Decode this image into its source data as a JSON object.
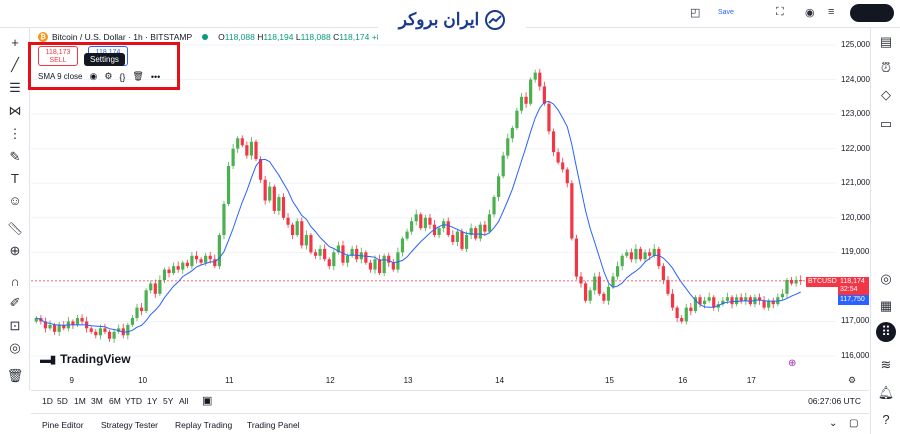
{
  "brand": {
    "name": "ایران بروکر"
  },
  "top_bar": {
    "faint_label": "Save"
  },
  "symbol": {
    "title": "Bitcoin / U.S. Dollar · 1h · BITSTAMP",
    "open_label": "O",
    "open": "118,088",
    "high_label": "H",
    "high": "118,194",
    "low_label": "L",
    "low": "118,088",
    "close_label": "C",
    "close": "118,174",
    "change": "+8"
  },
  "trade": {
    "sell_price": "118,173",
    "sell_label": "SELL",
    "buy_price": "118,174"
  },
  "indicator": {
    "label": "SMA 9 close",
    "tooltip": "Settings"
  },
  "price_axis": {
    "ticks": [
      "125,000",
      "124,000",
      "123,000",
      "122,000",
      "121,000",
      "120,000",
      "119,000",
      "118,000",
      "117,000",
      "116,000"
    ],
    "symbol_tag": "BTCUSD",
    "last_price": "118,174",
    "countdown": "32:54",
    "sma_price": "117,750"
  },
  "time_axis": {
    "ticks": [
      "9",
      "10",
      "11",
      "12",
      "13",
      "14",
      "15",
      "16",
      "17"
    ]
  },
  "logo": {
    "text": "TradingView"
  },
  "ranges": [
    "1D",
    "5D",
    "1M",
    "3M",
    "6M",
    "YTD",
    "1Y",
    "5Y",
    "All"
  ],
  "clock": "06:27:06 UTC",
  "bottom_tabs": [
    "Pine Editor",
    "Strategy Tester",
    "Replay Trading",
    "Trading Panel"
  ],
  "colors": {
    "up": "#4caf50",
    "down": "#f23645",
    "sma": "#2962ff",
    "frame": "#e3101a"
  },
  "chart_data": {
    "type": "candlestick",
    "interval": "1h",
    "ylim": [
      115700,
      125300
    ],
    "indicator": "SMA 9",
    "close_series": [
      {
        "day": "9",
        "close": [
          117100,
          117000,
          116800,
          116900,
          116700,
          116900,
          116800,
          117000,
          116900,
          117100,
          117000,
          116800,
          116700,
          116600,
          116800,
          116700,
          116500,
          116700,
          116800,
          116600,
          116900
        ]
      },
      {
        "day": "10",
        "close": [
          117100,
          117400,
          117300,
          117900,
          118100,
          117800,
          118200,
          118500,
          118400,
          118600,
          118500,
          118700,
          118600,
          118900,
          118800,
          118700,
          118900,
          118800,
          118600
        ]
      },
      {
        "day": "11",
        "close": [
          119500,
          120400,
          121500,
          122000,
          122300,
          122100,
          121800,
          122200,
          121700,
          121100,
          120500,
          120900,
          120200,
          120600,
          120000,
          119800,
          119500,
          119900,
          119200,
          119500,
          119000,
          118900
        ]
      },
      {
        "day": "12",
        "close": [
          119100,
          118800,
          118600,
          119000,
          119200,
          118700,
          118900,
          119100,
          118800,
          119000,
          118700,
          118500,
          118800,
          118400,
          118900,
          118700,
          118500
        ]
      },
      {
        "day": "13",
        "close": [
          119000,
          119400,
          119600,
          119900,
          120100,
          119700,
          120000,
          119800,
          119500,
          119700,
          119900,
          119500,
          119300,
          119600,
          119100,
          119500,
          119700,
          119400,
          119800,
          119600
        ]
      },
      {
        "day": "14",
        "close": [
          120100,
          120600,
          121200,
          121800,
          122300,
          122600,
          123100,
          123500,
          123300,
          124000,
          124200,
          123800,
          123300,
          122500,
          121900,
          121600,
          121400,
          121000,
          119400,
          118300,
          118100,
          117600,
          117900,
          118300
        ]
      },
      {
        "day": "15",
        "close": [
          117800,
          117600,
          118000,
          118300,
          118600,
          118900,
          119000,
          118800,
          119100,
          118800,
          119000,
          118900,
          119100,
          118600,
          118200,
          117800
        ]
      },
      {
        "day": "16",
        "close": [
          117400,
          117100,
          117000,
          117400,
          117300,
          117700,
          117500,
          117600,
          117700,
          117400,
          117500,
          117600,
          117700,
          117500,
          117700
        ]
      },
      {
        "day": "17",
        "close": [
          117600,
          117700,
          117500,
          117700,
          117600,
          117400,
          117600,
          117500,
          117700,
          117800,
          118200,
          118100,
          118200,
          118174
        ]
      }
    ]
  }
}
